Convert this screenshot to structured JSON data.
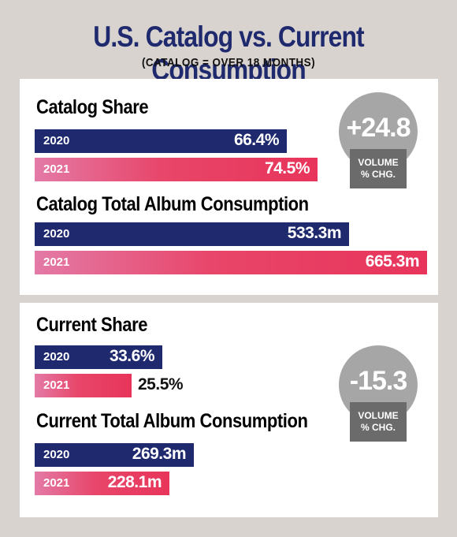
{
  "header": {
    "title": "U.S. Catalog vs. Current Consumption",
    "subtitle": "(CATALOG = OVER 18 MONTHS)"
  },
  "colors": {
    "year_2020": "#1f2a6e",
    "year_2021": "#e8345a",
    "badge_circle": "#a6a6a6",
    "badge_box": "#6b6b6b",
    "background": "#d9d3d0"
  },
  "catalog": {
    "share_label": "Catalog Share",
    "consumption_label": "Catalog Total Album Consumption",
    "badge": {
      "value": "+24.8",
      "caption_line1": "VOLUME",
      "caption_line2": "% CHG."
    }
  },
  "current": {
    "share_label": "Current Share",
    "consumption_label": "Current Total Album Consumption",
    "badge": {
      "value": "-15.3",
      "caption_line1": "VOLUME",
      "caption_line2": "% CHG."
    }
  },
  "chart_data": [
    {
      "type": "bar",
      "title": "Catalog Share",
      "categories": [
        "2020",
        "2021"
      ],
      "values": [
        66.4,
        74.5
      ],
      "labels": [
        "66.4%",
        "74.5%"
      ],
      "unit": "%"
    },
    {
      "type": "bar",
      "title": "Catalog Total Album Consumption",
      "categories": [
        "2020",
        "2021"
      ],
      "values": [
        533.3,
        665.3
      ],
      "labels": [
        "533.3m",
        "665.3m"
      ],
      "unit": "m"
    },
    {
      "type": "bar",
      "title": "Current Share",
      "categories": [
        "2020",
        "2021"
      ],
      "values": [
        33.6,
        25.5
      ],
      "labels": [
        "33.6%",
        "25.5%"
      ],
      "unit": "%"
    },
    {
      "type": "bar",
      "title": "Current Total Album Consumption",
      "categories": [
        "2020",
        "2021"
      ],
      "values": [
        269.3,
        228.1
      ],
      "labels": [
        "269.3m",
        "228.1m"
      ],
      "unit": "m"
    }
  ]
}
